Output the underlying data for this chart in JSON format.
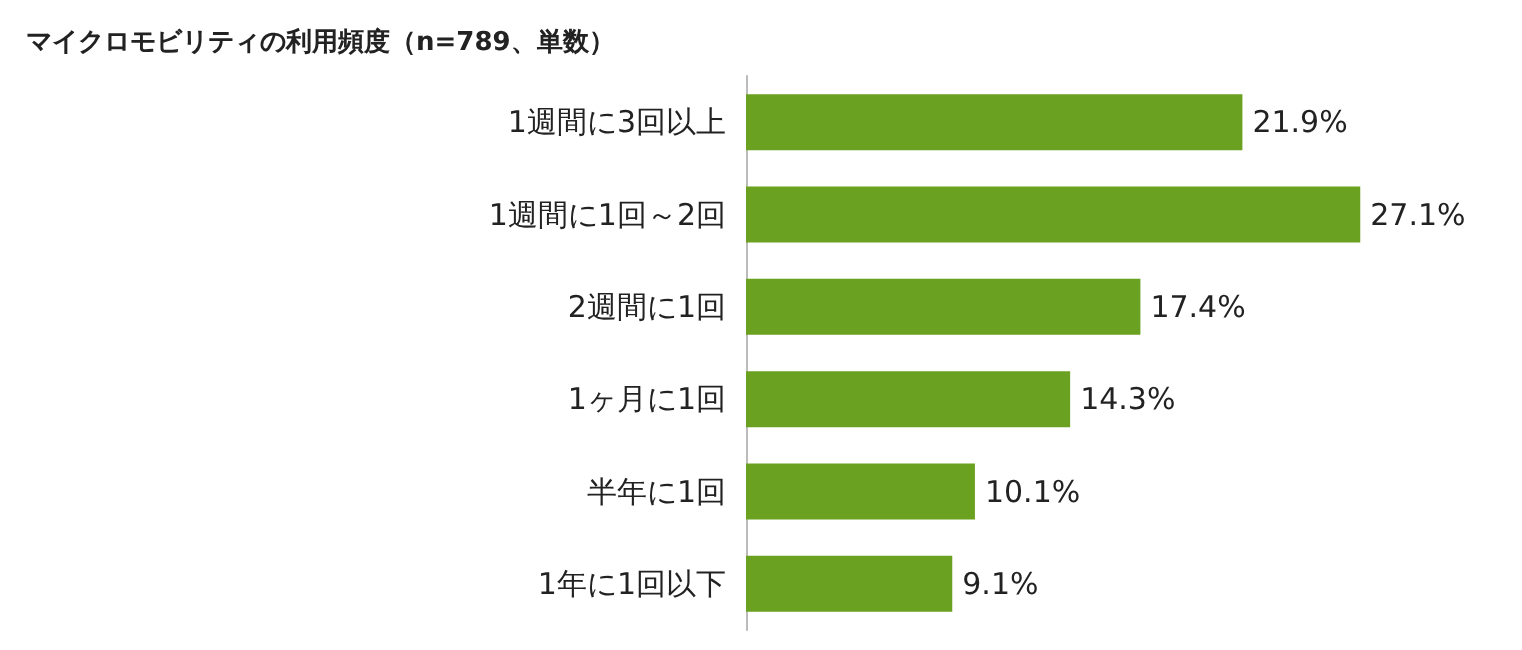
{
  "chart_data": {
    "type": "bar",
    "orientation": "horizontal",
    "title": "マイクロモビリティの利用頻度（n=789、単数）",
    "categories": [
      "1週間に3回以上",
      "1週間に1回～2回",
      "2週間に1回",
      "1ヶ月に1回",
      "半年に1回",
      "1年に1回以下"
    ],
    "values": [
      21.9,
      27.1,
      17.4,
      14.3,
      10.1,
      9.1
    ],
    "value_labels": [
      "21.9%",
      "27.1%",
      "17.4%",
      "14.3%",
      "10.1%",
      "9.1%"
    ],
    "color": "#6aa121"
  }
}
